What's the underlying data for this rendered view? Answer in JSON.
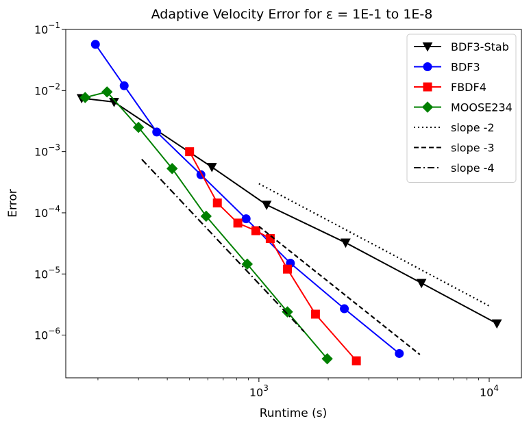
{
  "chart_data": {
    "type": "line",
    "title": "Adaptive Velocity Error for ε = 1E-1 to 1E-8",
    "xlabel": "Runtime (s)",
    "ylabel": "Error",
    "xscale": "log",
    "yscale": "log",
    "xlim": [
      145,
      13800
    ],
    "ylim": [
      2e-07,
      0.1
    ],
    "x_ticks": [
      {
        "value": 1000,
        "base": "10",
        "exp": "3"
      },
      {
        "value": 10000,
        "base": "10",
        "exp": "4"
      }
    ],
    "y_ticks": [
      {
        "value": 1e-06,
        "base": "10",
        "exp": "−6"
      },
      {
        "value": 1e-05,
        "base": "10",
        "exp": "−5"
      },
      {
        "value": 0.0001,
        "base": "10",
        "exp": "−4"
      },
      {
        "value": 0.001,
        "base": "10",
        "exp": "−3"
      },
      {
        "value": 0.01,
        "base": "10",
        "exp": "−2"
      },
      {
        "value": 0.1,
        "base": "10",
        "exp": "−1"
      }
    ],
    "grid": false,
    "legend_position": "top-right",
    "series": [
      {
        "name": "BDF3-Stab",
        "color": "#000000",
        "marker": "triangle-down",
        "dash": "solid",
        "x": [
          170,
          235,
          625,
          1080,
          2380,
          5080,
          10800
        ],
        "y": [
          0.0075,
          0.0065,
          0.00056,
          0.000135,
          3.25e-05,
          7.1e-06,
          1.55e-06
        ]
      },
      {
        "name": "BDF3",
        "color": "#0000ff",
        "marker": "circle",
        "dash": "solid",
        "x": [
          195,
          260,
          360,
          560,
          880,
          1370,
          2350,
          4070
        ],
        "y": [
          0.057,
          0.012,
          0.0021,
          0.00042,
          8e-05,
          1.5e-05,
          2.7e-06,
          5e-07
        ]
      },
      {
        "name": "FBDF4",
        "color": "#ff0000",
        "marker": "square",
        "dash": "solid",
        "x": [
          500,
          660,
          810,
          970,
          1120,
          1330,
          1760,
          2650
        ],
        "y": [
          0.001,
          0.000145,
          6.8e-05,
          5.1e-05,
          3.8e-05,
          1.2e-05,
          2.2e-06,
          3.8e-07
        ]
      },
      {
        "name": "MOOSE234",
        "color": "#008000",
        "marker": "diamond",
        "dash": "solid",
        "x": [
          176,
          219,
          300,
          420,
          590,
          890,
          1330,
          1980
        ],
        "y": [
          0.0077,
          0.0095,
          0.0025,
          0.00053,
          8.8e-05,
          1.45e-05,
          2.4e-06,
          4.1e-07
        ]
      },
      {
        "name": "slope -2",
        "color": "#000000",
        "marker": "none",
        "dash": "dotted",
        "x": [
          1000,
          10000
        ],
        "y": [
          0.0003,
          3e-06
        ]
      },
      {
        "name": "slope -3",
        "color": "#000000",
        "marker": "none",
        "dash": "dashed",
        "x": [
          1000,
          5000
        ],
        "y": [
          6e-05,
          4.8e-07
        ]
      },
      {
        "name": "slope -4",
        "color": "#000000",
        "marker": "none",
        "dash": "dashdot",
        "x": [
          310,
          1570
        ],
        "y": [
          0.00075,
          1.14e-06
        ]
      }
    ]
  }
}
